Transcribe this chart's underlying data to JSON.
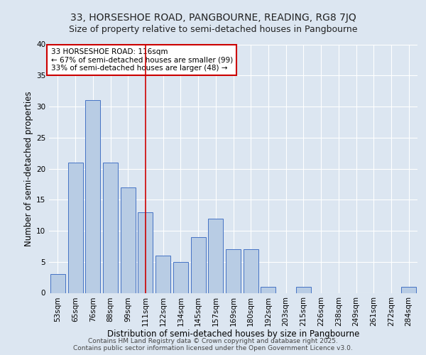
{
  "title1": "33, HORSESHOE ROAD, PANGBOURNE, READING, RG8 7JQ",
  "title2": "Size of property relative to semi-detached houses in Pangbourne",
  "xlabel": "Distribution of semi-detached houses by size in Pangbourne",
  "ylabel": "Number of semi-detached properties",
  "categories": [
    "53sqm",
    "65sqm",
    "76sqm",
    "88sqm",
    "99sqm",
    "111sqm",
    "122sqm",
    "134sqm",
    "145sqm",
    "157sqm",
    "169sqm",
    "180sqm",
    "192sqm",
    "203sqm",
    "215sqm",
    "226sqm",
    "238sqm",
    "249sqm",
    "261sqm",
    "272sqm",
    "284sqm"
  ],
  "values": [
    3,
    21,
    31,
    21,
    17,
    13,
    6,
    5,
    9,
    12,
    7,
    7,
    1,
    0,
    1,
    0,
    0,
    0,
    0,
    0,
    1
  ],
  "bar_color": "#b8cce4",
  "bar_edge_color": "#4472c4",
  "background_color": "#dce6f1",
  "grid_color": "#ffffff",
  "vline_color": "#cc0000",
  "vline_x": 5,
  "annotation_text": "33 HORSESHOE ROAD: 116sqm\n← 67% of semi-detached houses are smaller (99)\n33% of semi-detached houses are larger (48) →",
  "annotation_box_color": "#ffffff",
  "annotation_box_edge": "#cc0000",
  "footer": "Contains HM Land Registry data © Crown copyright and database right 2025.\nContains public sector information licensed under the Open Government Licence v3.0.",
  "ylim": [
    0,
    40
  ],
  "yticks": [
    0,
    5,
    10,
    15,
    20,
    25,
    30,
    35,
    40
  ],
  "title1_fontsize": 10,
  "title2_fontsize": 9,
  "axis_label_fontsize": 8.5,
  "tick_fontsize": 7.5,
  "annotation_fontsize": 7.5,
  "footer_fontsize": 6.5
}
